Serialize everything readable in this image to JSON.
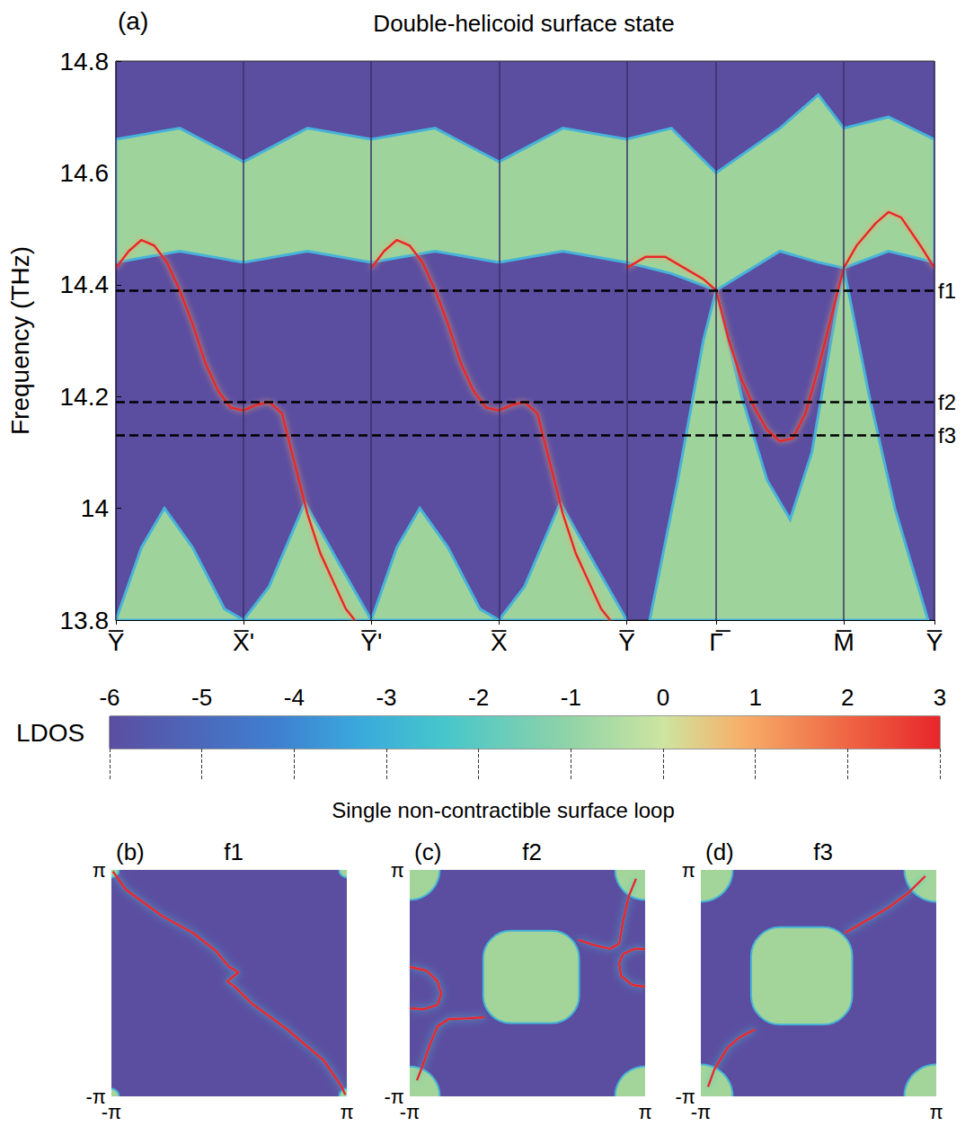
{
  "chart_data": [
    {
      "type": "line",
      "panel": "(a)",
      "title": "Double-helicoid surface state",
      "ylabel": "Frequency (THz)",
      "xlim": [
        0,
        6.41
      ],
      "xticks": [
        {
          "value": 0,
          "label": "Y̅"
        },
        {
          "value": 1,
          "label": "X̅'"
        },
        {
          "value": 2,
          "label": "Y̅'"
        },
        {
          "value": 3,
          "label": "X̅"
        },
        {
          "value": 4,
          "label": "Y̅"
        },
        {
          "value": 4.7,
          "label": "Γ̅"
        },
        {
          "value": 5.7,
          "label": "M̅"
        },
        {
          "value": 6.41,
          "label": "Y̅"
        }
      ],
      "ylim": [
        13.8,
        14.8
      ],
      "yticks": [
        13.8,
        14,
        14.2,
        14.4,
        14.6,
        14.8
      ],
      "grid": true,
      "bulk_regions": [
        {
          "color": "#9ed39c",
          "x": [
            0,
            0.5,
            1.0,
            1.5,
            2.0,
            2.5,
            3.0,
            3.5,
            4.0,
            4.35,
            4.7,
            5.2,
            5.5,
            5.7,
            6.05,
            6.41
          ],
          "lower": [
            14.44,
            14.46,
            14.44,
            14.46,
            14.44,
            14.46,
            14.44,
            14.46,
            14.44,
            14.42,
            14.39,
            14.46,
            14.44,
            14.43,
            14.46,
            14.44
          ],
          "upper": [
            14.66,
            14.68,
            14.62,
            14.68,
            14.66,
            14.68,
            14.62,
            14.68,
            14.66,
            14.68,
            14.6,
            14.68,
            14.74,
            14.68,
            14.7,
            14.66
          ]
        },
        {
          "color": "#9ed39c",
          "x": [
            0,
            0.2,
            0.38,
            0.6,
            0.85,
            1.0,
            1.2,
            1.48,
            1.75,
            2.0,
            2.2,
            2.38,
            2.6,
            2.85,
            3.0,
            3.2,
            3.48,
            3.75,
            4.0
          ],
          "lower": [
            13.8,
            13.8,
            13.8,
            13.8,
            13.8,
            13.8,
            13.8,
            13.8,
            13.8,
            13.8,
            13.8,
            13.8,
            13.8,
            13.8,
            13.8,
            13.8,
            13.8,
            13.8,
            13.8
          ],
          "upper": [
            13.8,
            13.93,
            14.0,
            13.93,
            13.82,
            13.8,
            13.86,
            14.01,
            13.9,
            13.8,
            13.93,
            14.0,
            13.93,
            13.82,
            13.8,
            13.86,
            14.01,
            13.9,
            13.8
          ]
        },
        {
          "color": "#9ed39c",
          "x": [
            4.18,
            4.4,
            4.6,
            4.7,
            4.9,
            5.1,
            5.28,
            5.45,
            5.6,
            5.7,
            5.9,
            6.1,
            6.36
          ],
          "lower": [
            13.8,
            13.8,
            13.8,
            13.8,
            13.8,
            13.8,
            13.8,
            13.8,
            13.8,
            13.8,
            13.8,
            13.8,
            13.8
          ],
          "upper": [
            13.8,
            14.05,
            14.3,
            14.39,
            14.2,
            14.05,
            13.98,
            14.1,
            14.3,
            14.43,
            14.2,
            14.0,
            13.8
          ]
        }
      ],
      "series": [
        {
          "color": "#e8262a",
          "x": [
            0,
            0.1,
            0.2,
            0.3,
            0.4,
            0.5,
            0.6,
            0.7,
            0.8,
            0.9,
            1.0,
            1.1,
            1.2,
            1.3,
            1.4,
            1.5,
            1.6,
            1.7,
            1.8,
            1.87,
            1.95,
            2.0,
            2.1,
            2.2,
            2.3,
            2.4,
            2.5,
            2.6,
            2.7,
            2.8,
            2.9,
            3.0,
            3.1,
            3.2,
            3.3,
            3.4,
            3.5,
            3.6,
            3.7,
            3.8,
            3.87,
            3.95,
            4.0,
            4.15,
            4.3,
            4.45,
            4.6,
            4.7,
            4.8,
            4.9,
            5.0,
            5.1,
            5.2,
            5.3,
            5.4,
            5.5,
            5.6,
            5.7,
            5.8,
            5.95,
            6.05,
            6.15,
            6.3,
            6.41
          ],
          "values": [
            14.43,
            14.46,
            14.48,
            14.47,
            14.44,
            14.39,
            14.33,
            14.26,
            14.21,
            14.18,
            14.175,
            14.185,
            14.19,
            14.17,
            14.08,
            13.99,
            13.92,
            13.87,
            13.82,
            13.8,
            null,
            14.43,
            14.46,
            14.48,
            14.47,
            14.44,
            14.39,
            14.33,
            14.26,
            14.21,
            14.18,
            14.175,
            14.185,
            14.19,
            14.17,
            14.08,
            13.99,
            13.92,
            13.87,
            13.82,
            13.8,
            null,
            14.43,
            14.45,
            14.45,
            14.43,
            14.41,
            14.39,
            14.3,
            14.23,
            14.18,
            14.14,
            14.12,
            14.125,
            14.17,
            14.25,
            14.34,
            14.43,
            14.47,
            14.51,
            14.53,
            14.52,
            14.47,
            14.43
          ]
        }
      ],
      "reference_lines": [
        {
          "label": "f1",
          "value": 14.39
        },
        {
          "label": "f2",
          "value": 14.185
        },
        {
          "label": "f3",
          "value": 14.135
        }
      ],
      "colorbar": {
        "label": "LDOS",
        "range": [
          -6,
          3
        ],
        "ticks": [
          -6,
          -5,
          -4,
          -3,
          -2,
          -1,
          0,
          1,
          2,
          3
        ]
      }
    },
    {
      "type": "contour",
      "panel": "(b)",
      "title": "f1",
      "xlim": [
        -3.1416,
        3.1416
      ],
      "ylim": [
        -3.1416,
        3.1416
      ],
      "xticks": [
        {
          "value": -3.1416,
          "label": "-π"
        },
        {
          "value": 3.1416,
          "label": "π"
        }
      ],
      "yticks": [
        {
          "value": -3.1416,
          "label": "-π"
        },
        {
          "value": 3.1416,
          "label": "π"
        }
      ],
      "pockets": [
        {
          "color": "#a3d59a",
          "center": [
            -3.1416,
            3.1416
          ],
          "radius": 0.2
        },
        {
          "color": "#a3d59a",
          "center": [
            3.1416,
            3.1416
          ],
          "radius": 0.2
        },
        {
          "color": "#a3d59a",
          "center": [
            -3.1416,
            -3.1416
          ],
          "radius": 0.2
        },
        {
          "color": "#a3d59a",
          "center": [
            3.1416,
            -3.1416
          ],
          "radius": 0.2
        }
      ],
      "curves": [
        {
          "color": "#e8262a",
          "x": [
            -3.1,
            -2.76,
            -1.8,
            -0.96,
            -0.36,
            0.0,
            0.25,
            -0.05,
            0.15,
            0.6,
            1.56,
            2.52,
            3.0,
            3.1
          ],
          "y": [
            3.1,
            2.6,
            1.87,
            1.39,
            0.9,
            0.45,
            0.3,
            0.05,
            -0.1,
            -0.56,
            -1.29,
            -2.14,
            -2.87,
            -3.1
          ]
        }
      ]
    },
    {
      "type": "contour",
      "panel": "(c)",
      "title": "f2",
      "xlim": [
        -3.1416,
        3.1416
      ],
      "ylim": [
        -3.1416,
        3.1416
      ],
      "xticks": [
        {
          "value": -3.1416,
          "label": "-π"
        },
        {
          "value": 3.1416,
          "label": "π"
        }
      ],
      "yticks": [
        {
          "value": -3.1416,
          "label": "-π"
        },
        {
          "value": 3.1416,
          "label": "π"
        }
      ],
      "pockets": [
        {
          "color": "#a3d59a",
          "center": [
            -3.1416,
            3.1416
          ],
          "radius": 0.8
        },
        {
          "color": "#a3d59a",
          "center": [
            3.1416,
            3.1416
          ],
          "radius": 0.8
        },
        {
          "color": "#a3d59a",
          "center": [
            -3.1416,
            -3.1416
          ],
          "radius": 0.8
        },
        {
          "color": "#a3d59a",
          "center": [
            3.1416,
            -3.1416
          ],
          "radius": 0.8
        }
      ],
      "squares": [
        {
          "color": "#a3d59a",
          "center": [
            0.1,
            0.17
          ],
          "half_width": 1.28
        }
      ],
      "curves": [
        {
          "color": "#e8262a",
          "x": [
            -1.15,
            -1.6,
            -2.1,
            -2.4,
            -2.6,
            -2.8,
            -2.95
          ],
          "y": [
            -0.95,
            -0.98,
            -1.0,
            -1.2,
            -1.7,
            -2.3,
            -2.7
          ]
        },
        {
          "color": "#e8262a",
          "x": [
            -3.14,
            -2.7,
            -2.4,
            -2.3,
            -2.4,
            -2.75,
            -3.14
          ],
          "y": [
            0.45,
            0.35,
            0.05,
            -0.3,
            -0.6,
            -0.72,
            -0.7
          ]
        },
        {
          "color": "#e8262a",
          "x": [
            1.35,
            1.8,
            2.2,
            2.45,
            2.55,
            2.7,
            2.9
          ],
          "y": [
            1.2,
            1.05,
            0.95,
            1.1,
            1.7,
            2.4,
            2.9
          ]
        },
        {
          "color": "#e8262a",
          "x": [
            3.14,
            2.8,
            2.5,
            2.45,
            2.55,
            2.85,
            3.14
          ],
          "y": [
            -0.1,
            -0.05,
            0.2,
            0.55,
            0.8,
            0.95,
            0.95
          ]
        }
      ]
    },
    {
      "type": "contour",
      "panel": "(d)",
      "title": "f3",
      "xlim": [
        -3.1416,
        3.1416
      ],
      "ylim": [
        -3.1416,
        3.1416
      ],
      "xticks": [
        {
          "value": -3.1416,
          "label": "-π"
        },
        {
          "value": 3.1416,
          "label": "π"
        }
      ],
      "yticks": [
        {
          "value": -3.1416,
          "label": "-π"
        },
        {
          "value": 3.1416,
          "label": "π"
        }
      ],
      "pockets": [
        {
          "color": "#a3d59a",
          "center": [
            -3.1416,
            3.1416
          ],
          "radius": 0.85
        },
        {
          "color": "#a3d59a",
          "center": [
            3.1416,
            3.1416
          ],
          "radius": 0.85
        },
        {
          "color": "#a3d59a",
          "center": [
            -3.1416,
            -3.1416
          ],
          "radius": 0.85
        },
        {
          "color": "#a3d59a",
          "center": [
            3.1416,
            -3.1416
          ],
          "radius": 0.85
        }
      ],
      "squares": [
        {
          "color": "#a3d59a",
          "center": [
            -0.45,
            0.2
          ],
          "half_width": 1.35
        }
      ],
      "curves": [
        {
          "color": "#e8262a",
          "x": [
            0.7,
            1.3,
            1.9,
            2.37,
            2.85
          ],
          "y": [
            1.39,
            1.75,
            2.12,
            2.48,
            2.97
          ]
        },
        {
          "color": "#e8262a",
          "x": [
            -1.7,
            -2.1,
            -2.42,
            -2.78,
            -2.95
          ],
          "y": [
            -1.29,
            -1.5,
            -1.78,
            -2.39,
            -2.88
          ]
        }
      ]
    }
  ],
  "group_title": "Single non-contractible surface loop"
}
